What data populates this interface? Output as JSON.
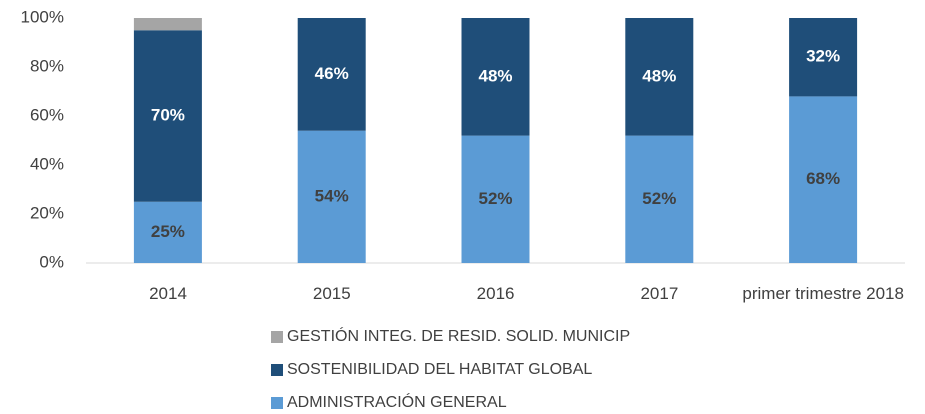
{
  "chart_data": {
    "type": "bar",
    "stacked": true,
    "categories": [
      "2014",
      "2015",
      "2016",
      "2017",
      "primer trimestre 2018"
    ],
    "series": [
      {
        "name": "ADMINISTRACIÓN GENERAL",
        "color": "#5b9bd5",
        "values": [
          25,
          54,
          52,
          52,
          68
        ],
        "value_labels": [
          "25%",
          "54%",
          "52%",
          "52%",
          "68%"
        ]
      },
      {
        "name": "SOSTENIBILIDAD DEL HABITAT GLOBAL",
        "color": "#1f4e79",
        "values": [
          70,
          46,
          48,
          48,
          32
        ],
        "value_labels": [
          "70%",
          "46%",
          "48%",
          "48%",
          "32%"
        ]
      },
      {
        "name": "GESTIÓN INTEG. DE RESID. SOLID. MUNICIP",
        "color": "#a5a5a5",
        "values": [
          5,
          0,
          0,
          0,
          0
        ]
      }
    ],
    "ylim": [
      0,
      100
    ],
    "yticks": [
      {
        "value": 0,
        "label": "0%"
      },
      {
        "value": 20,
        "label": "20%"
      },
      {
        "value": 40,
        "label": "40%"
      },
      {
        "value": 60,
        "label": "60%"
      },
      {
        "value": 80,
        "label": "80%"
      },
      {
        "value": 100,
        "label": "100%"
      }
    ],
    "grid": false,
    "legend": "bottom"
  }
}
